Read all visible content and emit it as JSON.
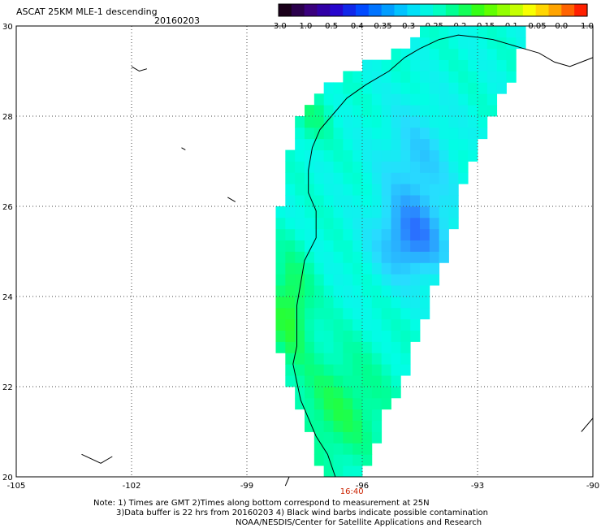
{
  "header": {
    "title": "ASCAT 25KM MLE-1 descending",
    "date": "20160203"
  },
  "colorbar": {
    "labels": [
      "-3.0",
      "-1.0",
      "-0.5",
      "-0.4",
      "-0.35",
      "-0.3",
      "-0.25",
      "-0.2",
      "-0.15",
      "-0.1",
      "-0.05",
      "0.0",
      "1.0"
    ],
    "colors": [
      "#1a001a",
      "#3b007a",
      "#2a00c8",
      "#0040ff",
      "#0090ff",
      "#00d8ff",
      "#00ffd8",
      "#00ff80",
      "#40ff00",
      "#a0ff00",
      "#ffff00",
      "#ffa000",
      "#ff2000"
    ]
  },
  "map": {
    "lon_labels": [
      "-105",
      "-102",
      "-99",
      "-96",
      "-93",
      "-90"
    ],
    "lat_labels": [
      "30",
      "28",
      "26",
      "24",
      "22",
      "20"
    ],
    "lon_range": [
      -105,
      -90
    ],
    "lat_range": [
      20,
      30
    ],
    "time_label": "16:40",
    "time_lon": -96.3
  },
  "notes": {
    "line1": "Note: 1) Times are GMT 2)Times along bottom correspond to measurement at 25N",
    "line2": "3)Data buffer is 22 hrs from 20160203 4) Black wind barbs indicate possible contamination",
    "line3": "NOAA/NESDIS/Center for Satellite Applications and Research"
  }
}
